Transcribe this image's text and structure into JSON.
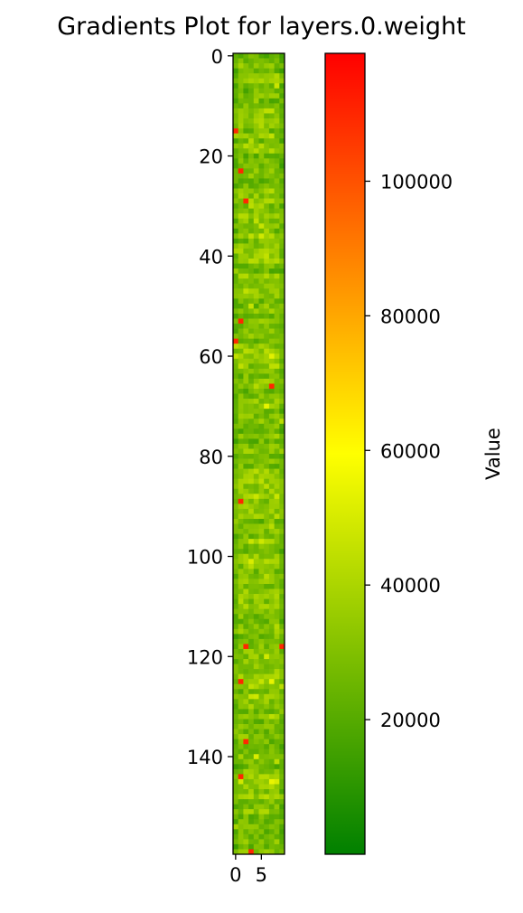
{
  "chart_data": {
    "type": "heatmap",
    "title": "Gradients Plot for layers.0.weight",
    "rows": 160,
    "cols": 10,
    "x_ticks": [
      0,
      5
    ],
    "y_ticks": [
      0,
      20,
      40,
      60,
      80,
      100,
      120,
      140
    ],
    "colorbar": {
      "label": "Value",
      "min": 0,
      "max": 119000,
      "ticks": [
        20000,
        40000,
        60000,
        80000,
        100000
      ],
      "colors": [
        "#008000",
        "#ffff00",
        "#ff0000"
      ]
    },
    "value_distribution": {
      "low_typical": 15000,
      "high_typical": 45000,
      "peak_value": 110000,
      "hot_cells": [
        [
          15,
          0
        ],
        [
          23,
          1
        ],
        [
          29,
          2
        ],
        [
          53,
          1
        ],
        [
          57,
          0
        ],
        [
          66,
          7
        ],
        [
          89,
          1
        ],
        [
          118,
          2
        ],
        [
          118,
          9
        ],
        [
          125,
          1
        ],
        [
          137,
          2
        ],
        [
          144,
          1
        ],
        [
          159,
          3
        ]
      ]
    }
  }
}
